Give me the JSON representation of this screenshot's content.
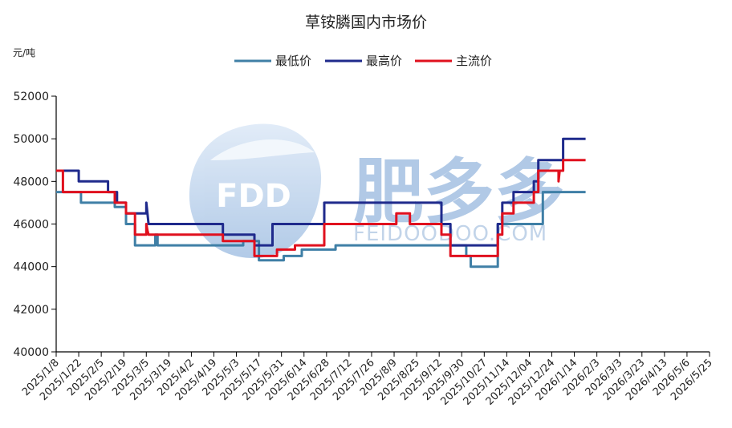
{
  "chart_data": {
    "type": "line",
    "title": "草铵膦国内市场价",
    "ylabel": "元/吨",
    "xlabel": "",
    "ylim": [
      40000,
      52000
    ],
    "yticks": [
      "52000",
      "50000",
      "48000",
      "46000",
      "44000",
      "42000",
      "40000"
    ],
    "xticks": [
      "2025/1/8",
      "2025/1/22",
      "2025/2/5",
      "2025/2/19",
      "2025/3/5",
      "2025/3/19",
      "2025/4/2",
      "2025/4/19",
      "2025/5/3",
      "2025/5/17",
      "2025/5/31",
      "2025/6/14",
      "2025/6/28",
      "2025/7/12",
      "2025/7/26",
      "2025/8/9",
      "2025/8/25",
      "2025/9/12",
      "2025/9/30",
      "2025/10/27",
      "2025/11/14",
      "2025/12/04",
      "2025/12/24",
      "2026/1/14",
      "2026/2/3",
      "2026/3/3",
      "2026/3/23",
      "2026/4/13",
      "2026/5/6",
      "2026/5/25"
    ],
    "grid": false,
    "legend_position": "top-center",
    "series": [
      {
        "name": "最低价",
        "color": "#3f7fa6",
        "points": [
          [
            0,
            47500
          ],
          [
            1.1,
            47500
          ],
          [
            1.1,
            47000
          ],
          [
            2.6,
            47000
          ],
          [
            2.6,
            46800
          ],
          [
            3.1,
            46800
          ],
          [
            3.1,
            46000
          ],
          [
            3.5,
            46000
          ],
          [
            3.5,
            45000
          ],
          [
            4.4,
            45000
          ],
          [
            4.4,
            45500
          ],
          [
            4.5,
            45500
          ],
          [
            4.5,
            45000
          ],
          [
            8.3,
            45000
          ],
          [
            8.3,
            45200
          ],
          [
            9.0,
            45200
          ],
          [
            9.0,
            44300
          ],
          [
            10.1,
            44300
          ],
          [
            10.1,
            44500
          ],
          [
            10.9,
            44500
          ],
          [
            10.9,
            44800
          ],
          [
            12.4,
            44800
          ],
          [
            12.4,
            45000
          ],
          [
            18.2,
            45000
          ],
          [
            18.2,
            44500
          ],
          [
            18.4,
            44500
          ],
          [
            18.4,
            44000
          ],
          [
            19.6,
            44000
          ],
          [
            19.6,
            46000
          ],
          [
            21.6,
            46000
          ],
          [
            21.6,
            47500
          ],
          [
            23.5,
            47500
          ]
        ]
      },
      {
        "name": "最高价",
        "color": "#1f2a8c",
        "points": [
          [
            0,
            48500
          ],
          [
            1.0,
            48500
          ],
          [
            1.0,
            48000
          ],
          [
            2.3,
            48000
          ],
          [
            2.3,
            47500
          ],
          [
            2.7,
            47500
          ],
          [
            2.7,
            47000
          ],
          [
            3.1,
            47000
          ],
          [
            3.1,
            46500
          ],
          [
            4.0,
            46500
          ],
          [
            4.0,
            47000
          ],
          [
            4.05,
            46500
          ],
          [
            4.1,
            46000
          ],
          [
            7.4,
            46000
          ],
          [
            7.4,
            45500
          ],
          [
            8.8,
            45500
          ],
          [
            8.8,
            45000
          ],
          [
            9.6,
            45000
          ],
          [
            9.6,
            46000
          ],
          [
            11.9,
            46000
          ],
          [
            11.9,
            47000
          ],
          [
            17.1,
            47000
          ],
          [
            17.1,
            46000
          ],
          [
            17.5,
            46000
          ],
          [
            17.5,
            45000
          ],
          [
            19.6,
            45000
          ],
          [
            19.6,
            46000
          ],
          [
            19.8,
            46000
          ],
          [
            19.8,
            47000
          ],
          [
            20.3,
            47000
          ],
          [
            20.3,
            47500
          ],
          [
            21.2,
            47500
          ],
          [
            21.2,
            48000
          ],
          [
            21.4,
            48000
          ],
          [
            21.4,
            49000
          ],
          [
            22.5,
            49000
          ],
          [
            22.5,
            50000
          ],
          [
            23.5,
            50000
          ]
        ]
      },
      {
        "name": "主流价",
        "color": "#e0101e",
        "points": [
          [
            0,
            48500
          ],
          [
            0.3,
            48500
          ],
          [
            0.3,
            47500
          ],
          [
            2.6,
            47500
          ],
          [
            2.6,
            47000
          ],
          [
            3.1,
            47000
          ],
          [
            3.1,
            46500
          ],
          [
            3.5,
            46500
          ],
          [
            3.5,
            45500
          ],
          [
            4.0,
            45500
          ],
          [
            4.0,
            46000
          ],
          [
            4.05,
            45700
          ],
          [
            4.1,
            45500
          ],
          [
            7.4,
            45500
          ],
          [
            7.4,
            45200
          ],
          [
            8.8,
            45200
          ],
          [
            8.8,
            44500
          ],
          [
            9.8,
            44500
          ],
          [
            9.8,
            44800
          ],
          [
            10.6,
            44800
          ],
          [
            10.6,
            45000
          ],
          [
            11.9,
            45000
          ],
          [
            11.9,
            46000
          ],
          [
            15.1,
            46000
          ],
          [
            15.1,
            46500
          ],
          [
            15.7,
            46500
          ],
          [
            15.7,
            46000
          ],
          [
            17.1,
            46000
          ],
          [
            17.1,
            45500
          ],
          [
            17.5,
            45500
          ],
          [
            17.5,
            44500
          ],
          [
            19.6,
            44500
          ],
          [
            19.6,
            45500
          ],
          [
            19.8,
            45500
          ],
          [
            19.8,
            46500
          ],
          [
            20.3,
            46500
          ],
          [
            20.3,
            47000
          ],
          [
            21.2,
            47000
          ],
          [
            21.2,
            47500
          ],
          [
            21.4,
            47500
          ],
          [
            21.4,
            48500
          ],
          [
            22.3,
            48500
          ],
          [
            22.3,
            48000
          ],
          [
            22.35,
            48500
          ],
          [
            22.5,
            48500
          ],
          [
            22.5,
            49000
          ],
          [
            23.5,
            49000
          ]
        ]
      }
    ]
  },
  "watermark": {
    "logo_text": "FDD",
    "brand_text": "肥多多",
    "site_text": "FEIDOODOO.COM"
  }
}
